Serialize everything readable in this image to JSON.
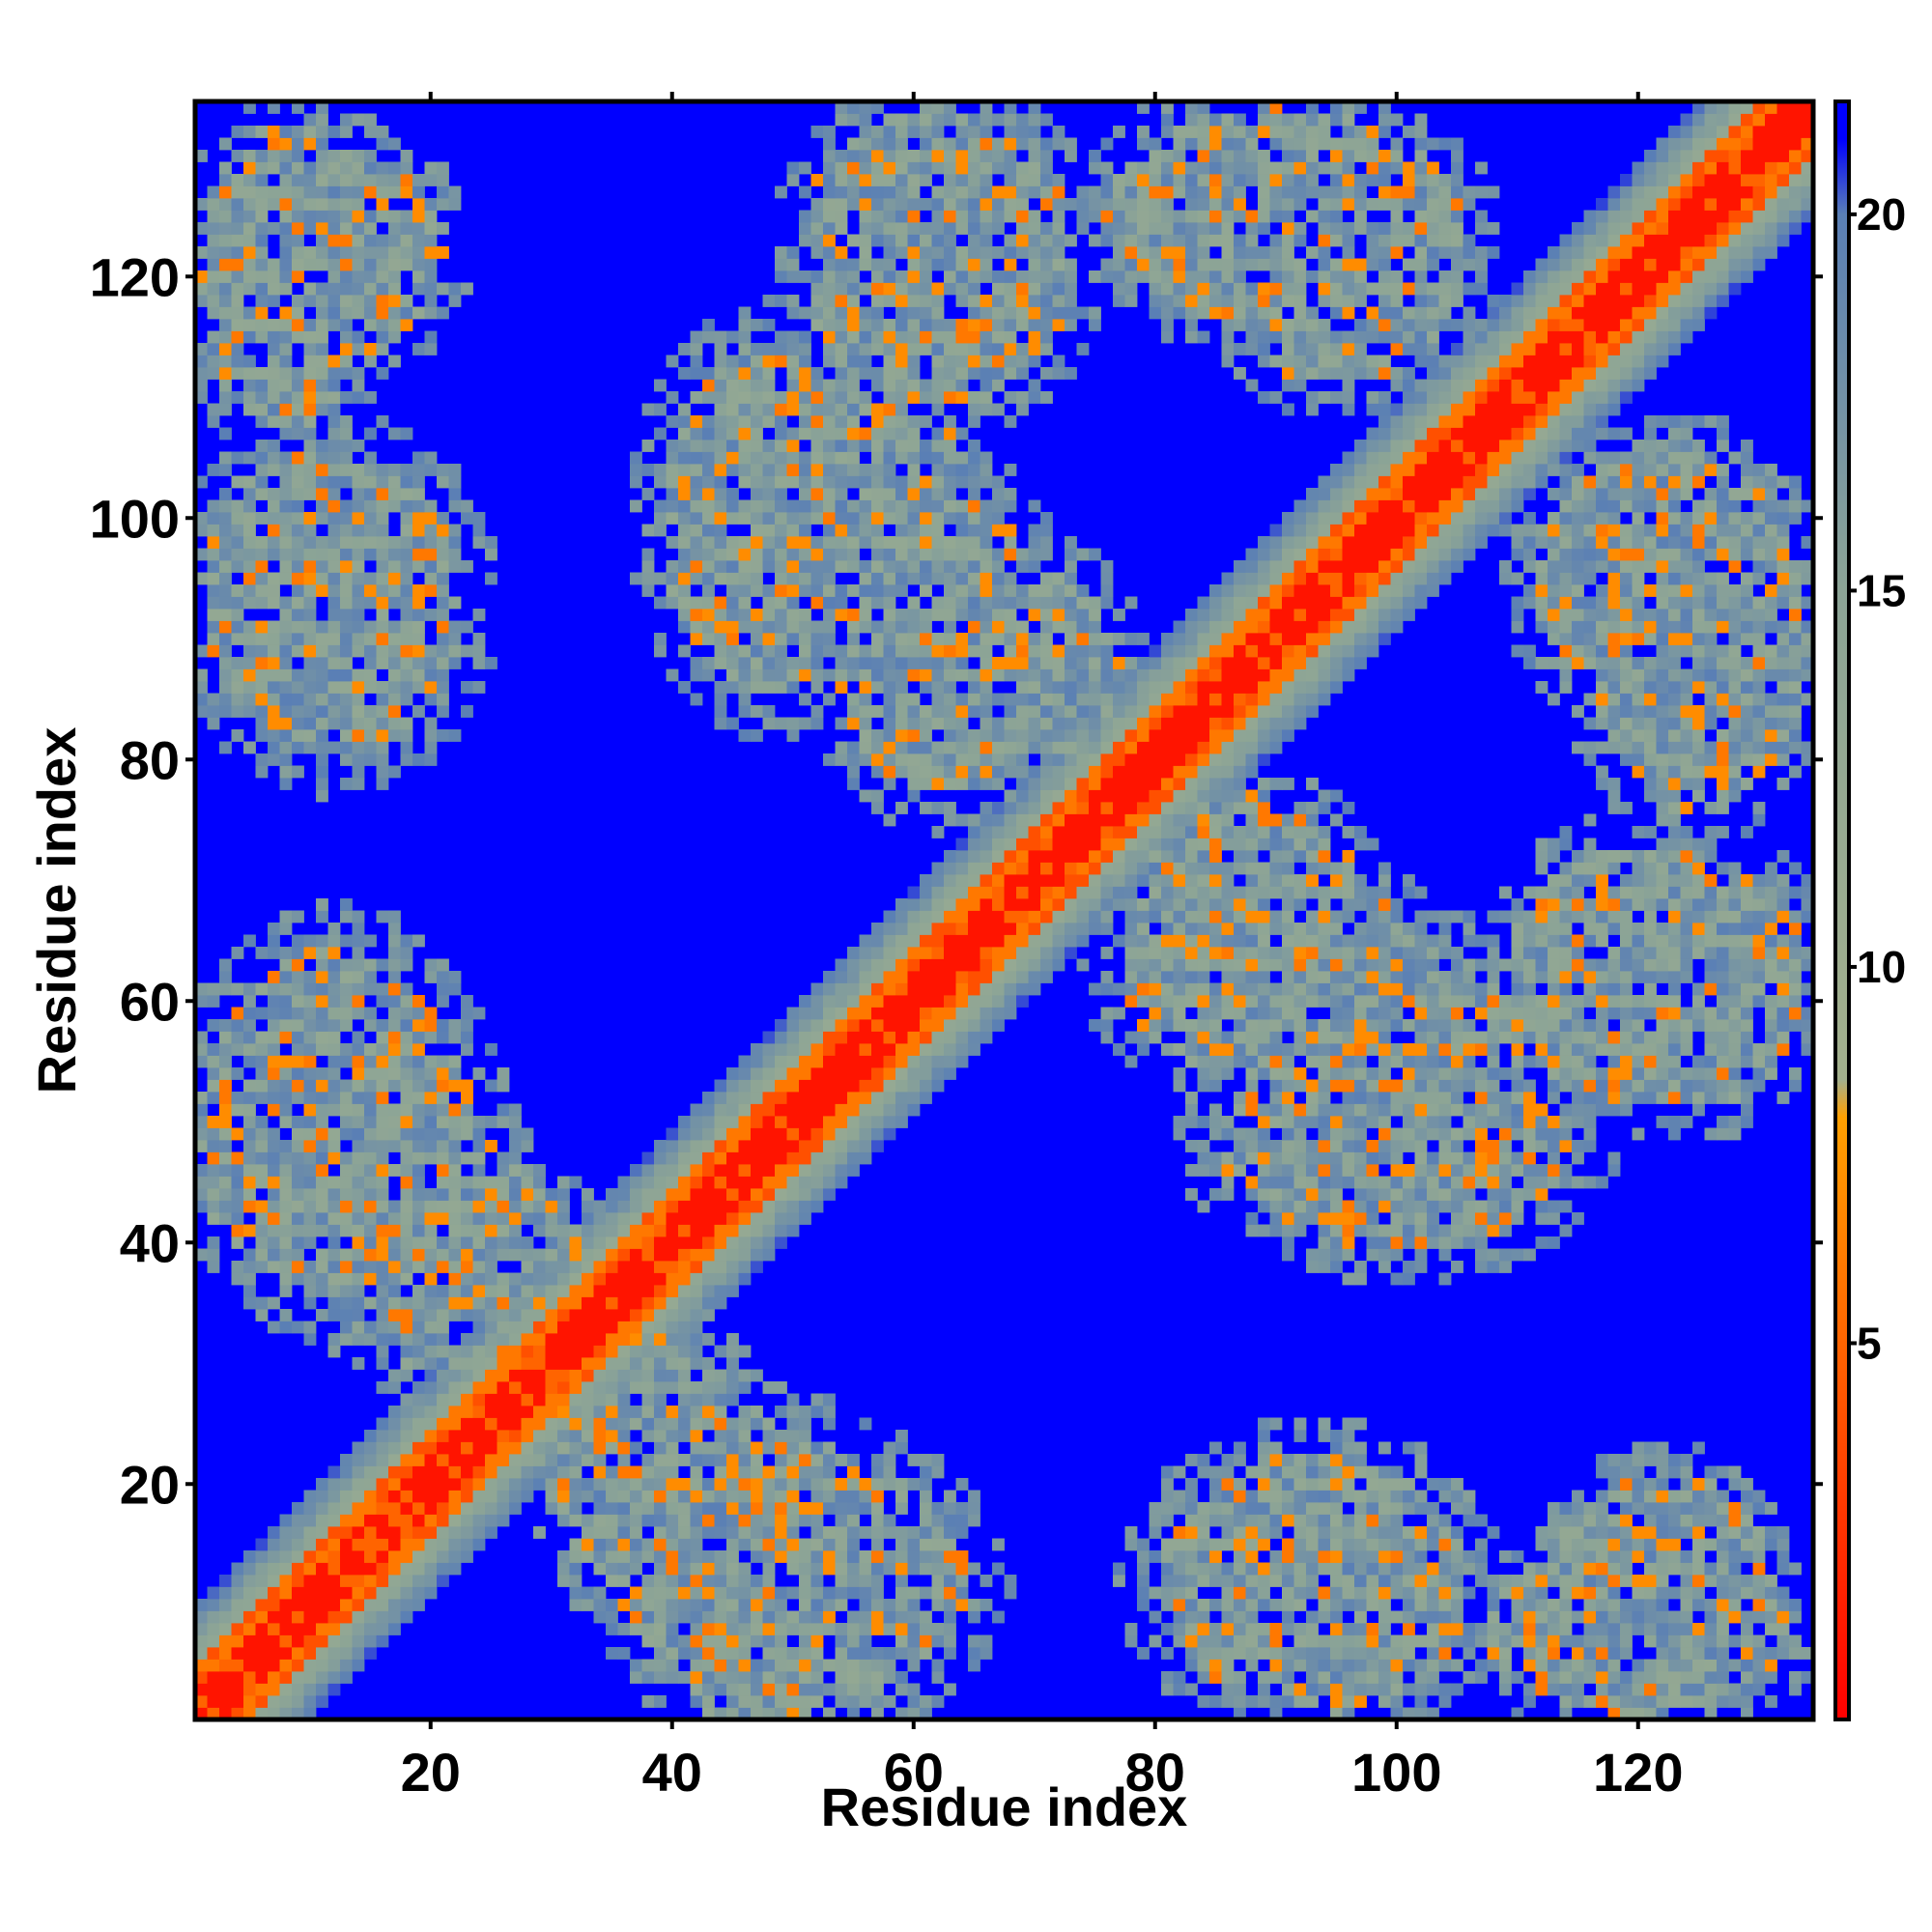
{
  "chart_data": {
    "type": "heatmap",
    "title": "",
    "xlabel": "Residue index",
    "ylabel": "Residue index",
    "x_range": [
      1,
      134
    ],
    "y_range": [
      1,
      134
    ],
    "x_ticks": [
      20,
      40,
      60,
      80,
      100,
      120
    ],
    "y_ticks": [
      20,
      40,
      60,
      80,
      100,
      120
    ],
    "colorbar": {
      "ticks": [
        5,
        10,
        15,
        20
      ],
      "range": [
        0,
        21.5
      ],
      "position": "right",
      "stops": [
        {
          "value": 0,
          "color": "#ff0000"
        },
        {
          "value": 4,
          "color": "#ff5000"
        },
        {
          "value": 8,
          "color": "#ffa000"
        },
        {
          "value": 8.5,
          "color": "#a3b08d"
        },
        {
          "value": 15,
          "color": "#8ca496"
        },
        {
          "value": 20,
          "color": "#5a7fb5"
        },
        {
          "value": 21,
          "color": "#0000ff"
        }
      ]
    },
    "description_matrix": "symmetric residue-residue distance matrix (Å); values >= 21 shown as blue",
    "diagonal_band": {
      "red_max_offset": 2,
      "orange_max_offset": 4,
      "green_max_offset": 9
    },
    "contact_regions": [
      {
        "x_center": 12,
        "y_center": 48,
        "x_radius": 14,
        "y_radius": 12
      },
      {
        "x_center": 22,
        "y_center": 38,
        "x_radius": 12,
        "y_radius": 10
      },
      {
        "x_center": 10,
        "y_center": 95,
        "x_radius": 10,
        "y_radius": 12
      },
      {
        "x_center": 12,
        "y_center": 122,
        "x_radius": 10,
        "y_radius": 10
      },
      {
        "x_center": 50,
        "y_center": 12,
        "x_radius": 16,
        "y_radius": 12
      },
      {
        "x_center": 40,
        "y_center": 22,
        "x_radius": 10,
        "y_radius": 8
      },
      {
        "x_center": 62,
        "y_center": 120,
        "x_radius": 12,
        "y_radius": 12
      },
      {
        "x_center": 55,
        "y_center": 100,
        "x_radius": 12,
        "y_radius": 12
      },
      {
        "x_center": 68,
        "y_center": 88,
        "x_radius": 10,
        "y_radius": 10
      },
      {
        "x_center": 90,
        "y_center": 125,
        "x_radius": 16,
        "y_radius": 10
      },
      {
        "x_center": 93,
        "y_center": 12,
        "x_radius": 14,
        "y_radius": 12
      },
      {
        "x_center": 100,
        "y_center": 48,
        "x_radius": 16,
        "y_radius": 10
      },
      {
        "x_center": 90,
        "y_center": 62,
        "x_radius": 14,
        "y_radius": 10
      },
      {
        "x_center": 122,
        "y_center": 95,
        "x_radius": 12,
        "y_radius": 12
      },
      {
        "x_center": 125,
        "y_center": 62,
        "x_radius": 10,
        "y_radius": 12
      },
      {
        "x_center": 120,
        "y_center": 8,
        "x_radius": 14,
        "y_radius": 8
      }
    ]
  }
}
